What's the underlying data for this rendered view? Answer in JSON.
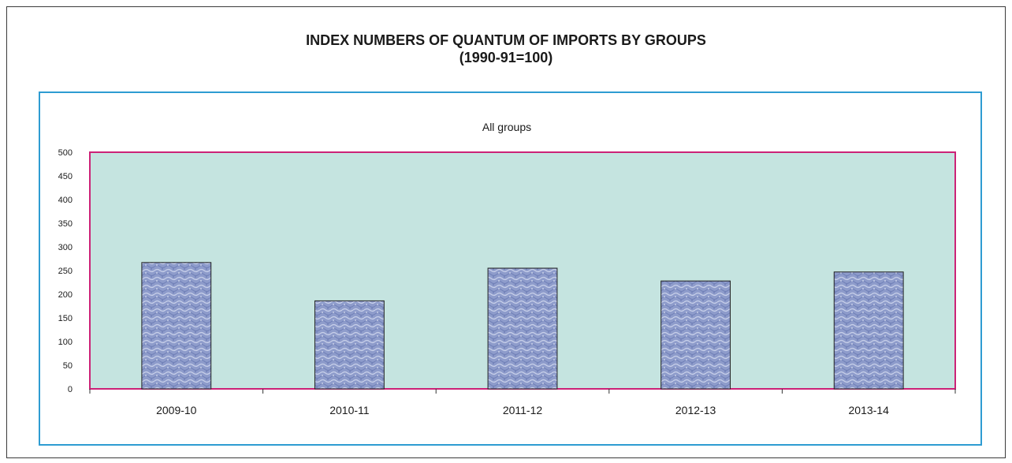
{
  "title": "INDEX NUMBERS OF QUANTUM OF IMPORTS BY GROUPS",
  "subtitle": "(1990-91=100)",
  "colors": {
    "plot_background": "#c5e4e0",
    "plot_border": "#cc2277",
    "outer_chart_border": "#2e9cd2",
    "bar_fill": "#8e9ccb",
    "bar_border": "#222222"
  },
  "chart_data": {
    "type": "bar",
    "title": "All groups",
    "categories": [
      "2009-10",
      "2010-11",
      "2011-12",
      "2012-13",
      "2013-14"
    ],
    "values": [
      267,
      186,
      255,
      228,
      247
    ],
    "ylim": [
      0,
      500
    ],
    "yticks": [
      0,
      50,
      100,
      150,
      200,
      250,
      300,
      350,
      400,
      450,
      500
    ],
    "xlabel": "",
    "ylabel": "",
    "grid": false,
    "legend": "none"
  }
}
